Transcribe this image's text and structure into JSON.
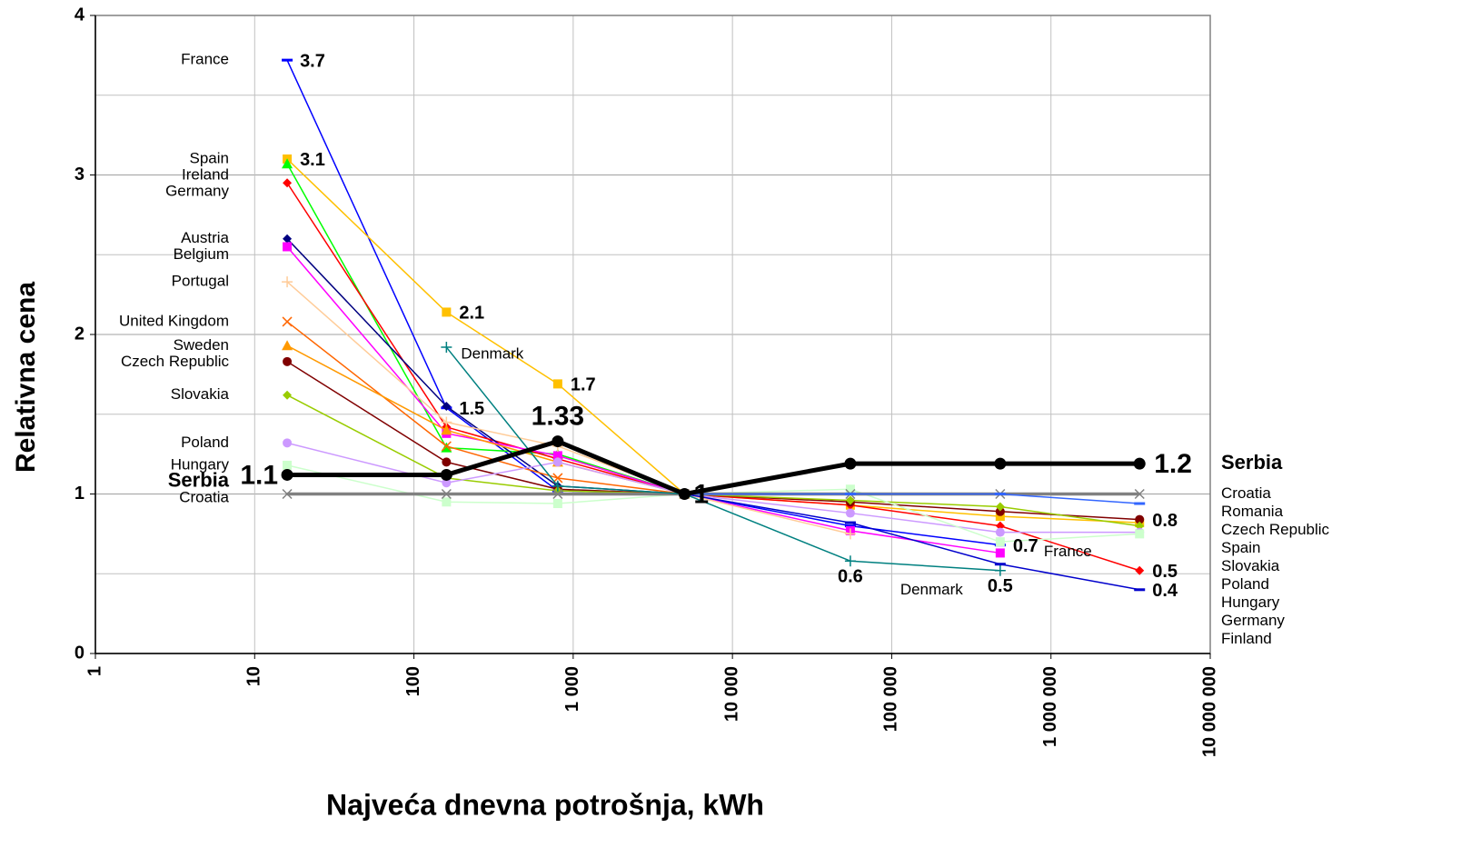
{
  "chart_data": {
    "type": "line",
    "xlabel": "Najveća dnevna potrošnja, kWh",
    "ylabel": "Relativna cena",
    "xscale": "log",
    "grid": true,
    "highlight": "Serbia",
    "x": [
      16,
      160,
      800,
      5000,
      55000,
      480000,
      3600000
    ],
    "xlim": [
      1,
      10000000
    ],
    "xticks": [
      1,
      10,
      100,
      {
        "value": 1000,
        "label": "1 000"
      },
      {
        "value": 10000,
        "label": "10 000"
      },
      {
        "value": 100000,
        "label": "100 000"
      },
      {
        "value": 1000000,
        "label": "1 000 000"
      },
      {
        "value": 10000000,
        "label": "10 000 000"
      }
    ],
    "ylim": [
      0,
      4
    ],
    "yticks": [
      0,
      1,
      2,
      3,
      4
    ],
    "yminor": [
      0.5,
      1.5,
      2.5,
      3.5
    ],
    "series": [
      {
        "name": "France",
        "color": "#0000ff",
        "marker": "dash",
        "values": [
          3.72,
          1.54,
          1.02,
          1,
          0.8,
          0.68,
          null
        ],
        "value_labels": [
          "3.7",
          "1.5",
          null,
          null,
          null,
          "0.7",
          null
        ]
      },
      {
        "name": "Spain",
        "color": "#ffc000",
        "marker": "square",
        "values": [
          3.1,
          2.14,
          1.69,
          1,
          0.93,
          0.86,
          0.82
        ],
        "value_labels": [
          "3.1",
          "2.1",
          "1.7",
          null,
          null,
          null,
          null
        ]
      },
      {
        "name": "Ireland",
        "color": "#00ff00",
        "marker": "triangle",
        "values": [
          3.07,
          1.29,
          1.25,
          1,
          null,
          null,
          null
        ]
      },
      {
        "name": "Germany",
        "color": "#ff0000",
        "marker": "diamond",
        "values": [
          2.95,
          1.42,
          1.22,
          1,
          0.93,
          0.8,
          0.52
        ],
        "value_labels": [
          null,
          null,
          null,
          null,
          null,
          null,
          "0.5"
        ]
      },
      {
        "name": "Austria",
        "color": "#000080",
        "marker": "diamond",
        "values": [
          2.6,
          1.55,
          1.05,
          1,
          null,
          null,
          null
        ]
      },
      {
        "name": "Belgium",
        "color": "#ff00ff",
        "marker": "square",
        "values": [
          2.55,
          1.38,
          1.24,
          1,
          0.77,
          0.63,
          null
        ]
      },
      {
        "name": "Portugal",
        "color": "#ffcc99",
        "marker": "plus",
        "values": [
          2.33,
          1.45,
          1.3,
          1,
          0.75,
          null,
          null
        ]
      },
      {
        "name": "United Kingdom",
        "color": "#ff6600",
        "marker": "x",
        "values": [
          2.08,
          1.3,
          1.1,
          1,
          null,
          null,
          null
        ]
      },
      {
        "name": "Sweden",
        "color": "#ff9900",
        "marker": "triangle",
        "values": [
          1.93,
          1.4,
          1.2,
          1,
          null,
          null,
          null
        ]
      },
      {
        "name": "Czech Republic",
        "color": "#800000",
        "marker": "circle",
        "values": [
          1.83,
          1.2,
          1.03,
          1,
          0.95,
          0.89,
          0.84
        ],
        "value_labels": [
          null,
          null,
          null,
          null,
          null,
          null,
          "0.8"
        ]
      },
      {
        "name": "Slovakia",
        "color": "#99cc00",
        "marker": "diamond",
        "values": [
          1.62,
          1.1,
          1.02,
          1,
          0.96,
          0.92,
          0.8
        ]
      },
      {
        "name": "Poland",
        "color": "#cc99ff",
        "marker": "circle",
        "values": [
          1.32,
          1.07,
          1.2,
          1,
          0.88,
          0.76,
          0.76
        ]
      },
      {
        "name": "Hungary",
        "color": "#ccffcc",
        "marker": "square",
        "values": [
          1.18,
          0.95,
          0.94,
          1,
          1.03,
          0.7,
          0.75
        ]
      },
      {
        "name": "Croatia",
        "color": "#808080",
        "marker": "x",
        "values": [
          1,
          1,
          1,
          1,
          1,
          1,
          1
        ]
      },
      {
        "name": "Denmark",
        "color": "#008080",
        "marker": "plus",
        "values": [
          null,
          1.92,
          1.05,
          1,
          0.58,
          0.52,
          null
        ],
        "value_labels": [
          null,
          null,
          null,
          null,
          "0.6",
          "0.5",
          null
        ]
      },
      {
        "name": "Romania",
        "color": "#3366ff",
        "marker": "dash",
        "values": [
          null,
          null,
          null,
          1,
          1,
          1,
          0.94
        ]
      },
      {
        "name": "Finland",
        "color": "#0000cc",
        "marker": "dash",
        "values": [
          null,
          null,
          null,
          1,
          0.82,
          0.56,
          0.4
        ],
        "value_labels": [
          null,
          null,
          null,
          null,
          null,
          null,
          "0.4"
        ]
      },
      {
        "name": "Serbia",
        "color": "#000000",
        "marker": "circle",
        "values": [
          1.12,
          1.12,
          1.33,
          1,
          1.19,
          1.19,
          1.19
        ],
        "value_labels": [
          "1.1",
          null,
          "1.33",
          "1",
          null,
          null,
          "1.2"
        ]
      }
    ],
    "right_labels": [
      "Serbia",
      "Croatia",
      "Romania",
      "Czech Republic",
      "Spain",
      "Slovakia",
      "Poland",
      "Hungary",
      "Germany",
      "Finland",
      "France",
      "Denmark"
    ]
  }
}
